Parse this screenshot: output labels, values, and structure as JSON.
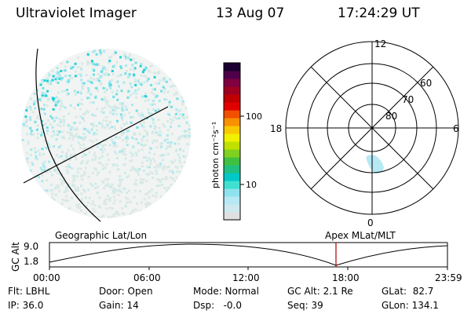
{
  "header": {
    "title": "Ultraviolet Imager",
    "date": "13 Aug 07",
    "time": "17:24:29 UT"
  },
  "colorbar": {
    "unit_label": "photon cm⁻²s⁻¹",
    "tick_100": "100",
    "tick_10": "10",
    "colors": [
      "#e0e0e0",
      "#cde9ef",
      "#b6e9f3",
      "#8ee2ee",
      "#40e0d0",
      "#00c8c8",
      "#20c080",
      "#40c040",
      "#80d020",
      "#c0e000",
      "#f0f000",
      "#f8c800",
      "#f89000",
      "#f05000",
      "#e00000",
      "#c00000",
      "#a00020",
      "#800040",
      "#50004a",
      "#1a0030"
    ]
  },
  "polar": {
    "label_12": "12",
    "label_6": "6",
    "label_18": "18",
    "label_0": "0",
    "label_60": "60",
    "label_70": "70",
    "label_80": "80"
  },
  "timeline": {
    "label_left": "Geographic Lat/Lon",
    "label_right": "Apex MLat/MLT",
    "axis_label": "GC Alt",
    "y_max": "9.0",
    "y_min": "1.8",
    "ticks": [
      "00:00",
      "06:00",
      "12:00",
      "18:00",
      "23:59"
    ],
    "accent_color": "#b00000"
  },
  "footer": {
    "flt": "Flt: LBHL",
    "ip": "IP: 36.0",
    "door": "Door: Open",
    "gain": "Gain: 14",
    "mode": "Mode: Normal",
    "dsp": "Dsp:   -0.0",
    "gcalt": "GC Alt: 2.1 Re",
    "seq": "Seq: 39",
    "glat": "GLat:  82.7",
    "glon": "GLon: 134.1"
  }
}
